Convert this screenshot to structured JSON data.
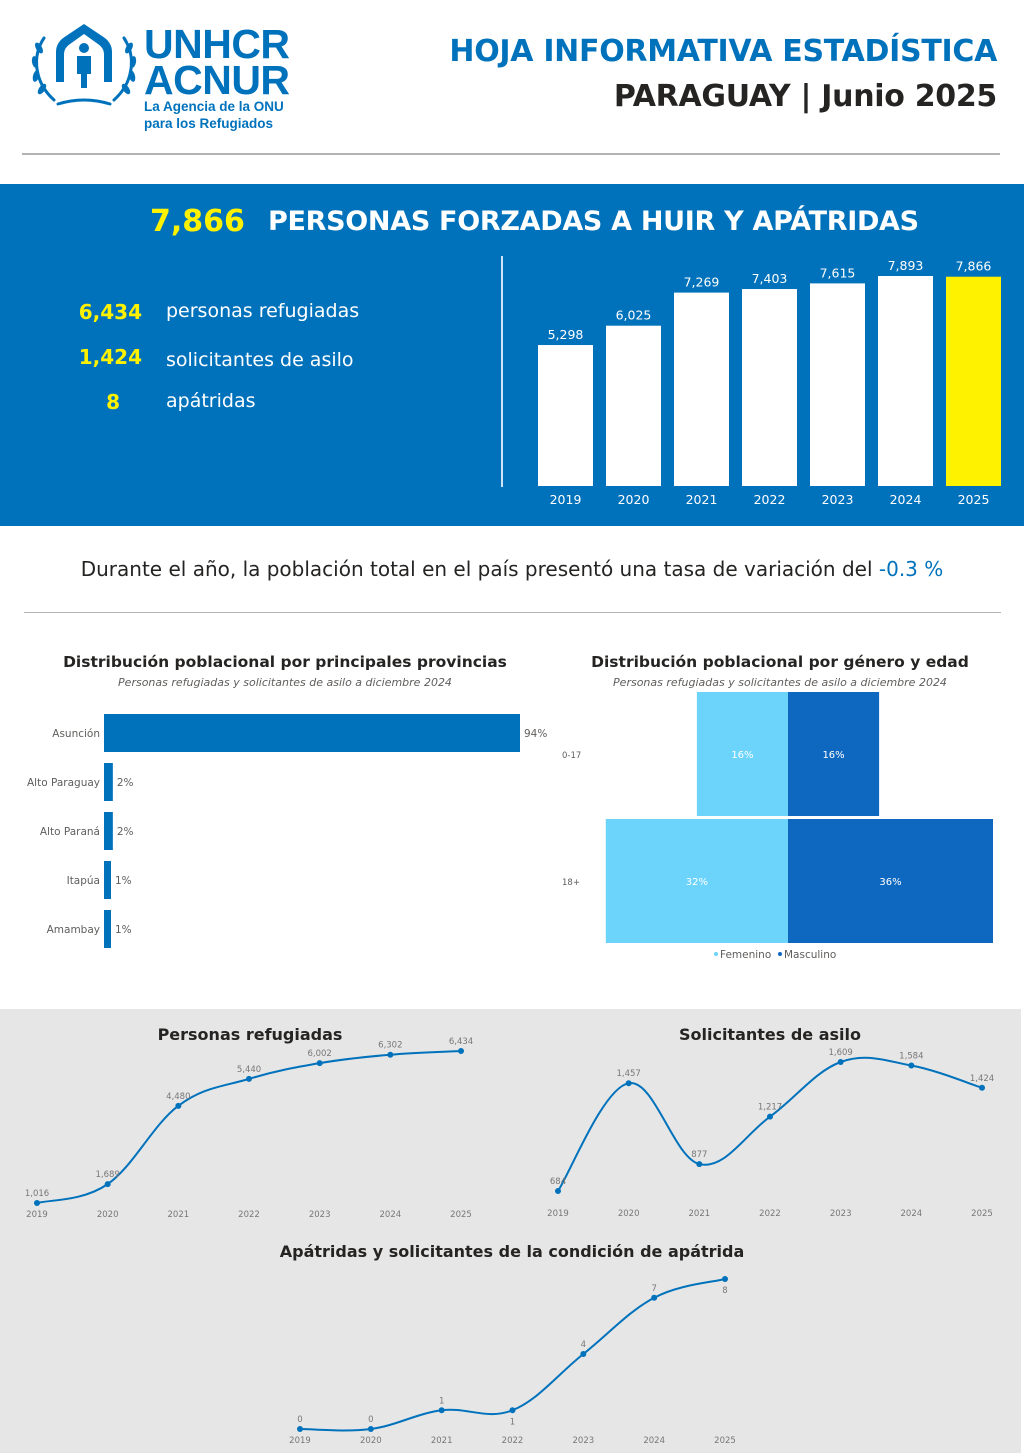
{
  "header": {
    "logo": {
      "line1": "UNHCR",
      "line2": "ACNUR",
      "sub1": "La Agencia de la ONU",
      "sub2": "para los Refugiados",
      "brand_color": "#0072bc"
    },
    "title": "HOJA INFORMATIVA ESTADÍSTICA",
    "subtitle": "PARAGUAY | Junio 2025"
  },
  "summary": {
    "total": "7,866",
    "title": "PERSONAS FORZADAS A HUIR Y APÁTRIDAS",
    "stats": [
      {
        "value": "6,434",
        "label": "personas refugiadas"
      },
      {
        "value": "1,424",
        "label": "solicitantes de asilo"
      },
      {
        "value": "8",
        "label": "apátridas"
      }
    ],
    "colors": {
      "band": "#0072bc",
      "highlight": "#fff200",
      "bar": "#ffffff"
    }
  },
  "variation": {
    "text": "Durante el año, la población total en el país presentó una tasa de variación del ",
    "value": "-0.3 %"
  },
  "chart_data": [
    {
      "id": "total",
      "type": "bar",
      "title": "",
      "categories": [
        "2019",
        "2020",
        "2021",
        "2022",
        "2023",
        "2024",
        "2025"
      ],
      "values": [
        5298,
        6025,
        7269,
        7403,
        7615,
        7893,
        7866
      ],
      "labels": [
        "5,298",
        "6,025",
        "7,269",
        "7,403",
        "7,615",
        "7,893",
        "7,866"
      ],
      "highlight_index": 6,
      "ylim": [
        0,
        7893
      ]
    },
    {
      "id": "provinces",
      "type": "bar",
      "orientation": "horizontal",
      "title": "Distribución poblacional por principales provincias",
      "subtitle": "Personas refugiadas y solicitantes de asilo a diciembre 2024",
      "categories": [
        "Asunción",
        "Alto Paraguay",
        "Alto Paraná",
        "Itapúa",
        "Amambay"
      ],
      "values": [
        94,
        2,
        2,
        1,
        1
      ],
      "labels": [
        "94%",
        "2%",
        "2%",
        "1%",
        "1%"
      ],
      "color": "#0072bc",
      "xlim": [
        0,
        94
      ]
    },
    {
      "id": "pyramid",
      "type": "bar",
      "orientation": "pyramid",
      "title": "Distribución poblacional por género y edad",
      "subtitle": "Personas refugiadas y solicitantes de asilo a diciembre 2024",
      "categories": [
        "0-17",
        "18+"
      ],
      "series": [
        {
          "name": "Femenino",
          "values": [
            16,
            32
          ],
          "labels": [
            "16%",
            "32%"
          ],
          "color": "#6cd4fb"
        },
        {
          "name": "Masculino",
          "values": [
            16,
            36
          ],
          "labels": [
            "16%",
            "36%"
          ],
          "color": "#0f68c0"
        }
      ],
      "legend": "bottom"
    },
    {
      "id": "refugiados",
      "type": "line",
      "title": "Personas refugiadas",
      "x": [
        "2019",
        "2020",
        "2021",
        "2022",
        "2023",
        "2024",
        "2025"
      ],
      "values": [
        1016,
        1689,
        4480,
        5440,
        6002,
        6302,
        6434
      ],
      "labels": [
        "1,016",
        "1,689",
        "4,480",
        "5,440",
        "6,002",
        "6,302",
        "6,434"
      ],
      "color": "#0072bc"
    },
    {
      "id": "solicitantes",
      "type": "line",
      "title": "Solicitantes de asilo",
      "x": [
        "2019",
        "2020",
        "2021",
        "2022",
        "2023",
        "2024",
        "2025"
      ],
      "values": [
        684,
        1457,
        877,
        1217,
        1609,
        1584,
        1424
      ],
      "labels": [
        "684",
        "1,457",
        "877",
        "1,217",
        "1,609",
        "1,584",
        "1,424"
      ],
      "uncertain_values": [
        {
          "index": 0,
          "x": "2019",
          "note": "Label partly hidden by the line; 684 is a best-guess reading, not confirmed."
        }
      ],
      "color": "#0072bc"
    },
    {
      "id": "apatridas",
      "type": "line",
      "title": "Apátridas y solicitantes de la condición de apátrida",
      "x": [
        "2019",
        "2020",
        "2021",
        "2022",
        "2023",
        "2024",
        "2025"
      ],
      "values": [
        0,
        0,
        1,
        1,
        4,
        7,
        8
      ],
      "labels": [
        "0",
        "0",
        "1",
        "1",
        "4",
        "7",
        "8"
      ],
      "color": "#0072bc"
    }
  ]
}
